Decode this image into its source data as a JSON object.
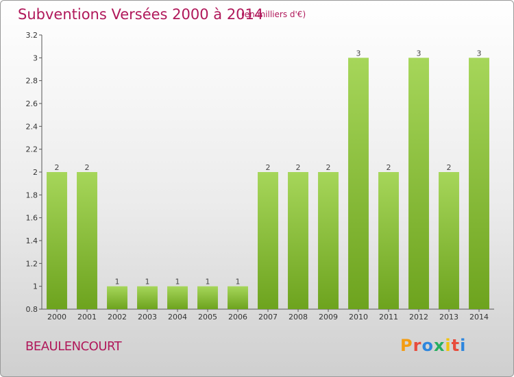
{
  "header": {
    "title": "Subventions Versées 2000 à 2014",
    "subtitle": "(en milliers d'€)"
  },
  "footer": {
    "commune": "BEAULENCOURT",
    "brand": "Proxiti",
    "brand_colors": [
      "#f39c12",
      "#e74c3c",
      "#2e86de",
      "#27ae60",
      "#f1c40f",
      "#e74c3c",
      "#2e86de"
    ]
  },
  "colors": {
    "accent": "#b0185a",
    "bar_top": "#a6d65a",
    "bar_bottom": "#6da31e"
  },
  "chart_data": {
    "type": "bar",
    "title": "Subventions Versées 2000 à 2014",
    "subtitle": "(en milliers d'€)",
    "categories": [
      "2000",
      "2001",
      "2002",
      "2003",
      "2004",
      "2005",
      "2006",
      "2007",
      "2008",
      "2009",
      "2010",
      "2011",
      "2012",
      "2013",
      "2014"
    ],
    "values": [
      2,
      2,
      1,
      1,
      1,
      1,
      1,
      2,
      2,
      2,
      3,
      2,
      3,
      2,
      3
    ],
    "value_labels": [
      "2",
      "2",
      "1",
      "1",
      "1",
      "1",
      "1",
      "2",
      "2",
      "2",
      "3",
      "2",
      "3",
      "2",
      "3"
    ],
    "ylim": [
      0.8,
      3.2
    ],
    "yticks": [
      0.8,
      1,
      1.2,
      1.4,
      1.6,
      1.8,
      2,
      2.2,
      2.4,
      2.6,
      2.8,
      3,
      3.2
    ],
    "ytick_labels": [
      "0.8",
      "1",
      "1.2",
      "1.4",
      "1.6",
      "1.8",
      "2",
      "2.2",
      "2.4",
      "2.6",
      "2.8",
      "3",
      "3.2"
    ],
    "xlabel": "",
    "ylabel": "",
    "grid": false
  }
}
